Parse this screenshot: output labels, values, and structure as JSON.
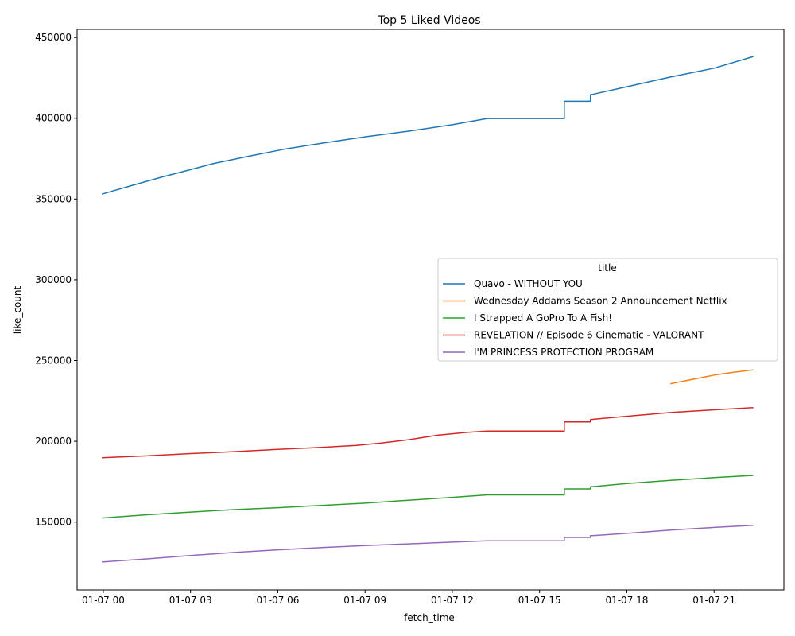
{
  "chart_data": {
    "type": "line",
    "title": "Top 5 Liked Videos",
    "xlabel": "fetch_time",
    "ylabel": "like_count",
    "x_unit": "hours since 01-07 00:00",
    "xlim": [
      -0.9,
      23.4
    ],
    "ylim": [
      108000,
      455000
    ],
    "x_ticks": [
      {
        "value": 0,
        "label": "01-07 00"
      },
      {
        "value": 3,
        "label": "01-07 03"
      },
      {
        "value": 6,
        "label": "01-07 06"
      },
      {
        "value": 9,
        "label": "01-07 09"
      },
      {
        "value": 12,
        "label": "01-07 12"
      },
      {
        "value": 15,
        "label": "01-07 15"
      },
      {
        "value": 18,
        "label": "01-07 18"
      },
      {
        "value": 21,
        "label": "01-07 21"
      }
    ],
    "y_ticks": [
      {
        "value": 150000,
        "label": "150000"
      },
      {
        "value": 200000,
        "label": "200000"
      },
      {
        "value": 250000,
        "label": "250000"
      },
      {
        "value": 300000,
        "label": "300000"
      },
      {
        "value": 350000,
        "label": "350000"
      },
      {
        "value": 400000,
        "label": "400000"
      },
      {
        "value": 450000,
        "label": "450000"
      }
    ],
    "legend": {
      "title": "title",
      "position": "center-right"
    },
    "grid": false,
    "series": [
      {
        "name": "Quavo - WITHOUT YOU",
        "color": "#1f77b4",
        "points": [
          [
            -0.05,
            353000
          ],
          [
            1.0,
            358500
          ],
          [
            2.0,
            363500
          ],
          [
            3.0,
            368200
          ],
          [
            3.8,
            372000
          ],
          [
            5.0,
            376500
          ],
          [
            6.2,
            380800
          ],
          [
            7.5,
            384500
          ],
          [
            9.0,
            388500
          ],
          [
            10.5,
            392000
          ],
          [
            12.0,
            396000
          ],
          [
            13.2,
            399800
          ],
          [
            14.5,
            399800
          ],
          [
            15.85,
            399800
          ],
          [
            15.85,
            410500
          ],
          [
            16.75,
            410500
          ],
          [
            16.75,
            414500
          ],
          [
            18.0,
            419500
          ],
          [
            19.5,
            425500
          ],
          [
            21.0,
            431000
          ],
          [
            22.35,
            438200
          ]
        ]
      },
      {
        "name": "Wednesday Addams  Season 2 Announcement  Netflix",
        "color": "#ff7f0e",
        "points": [
          [
            19.5,
            235700
          ],
          [
            20.3,
            238500
          ],
          [
            21.0,
            241000
          ],
          [
            21.7,
            242800
          ],
          [
            22.35,
            244200
          ]
        ]
      },
      {
        "name": "I Strapped A GoPro To A Fish!",
        "color": "#2ca02c",
        "points": [
          [
            -0.05,
            152500
          ],
          [
            1.5,
            154500
          ],
          [
            3.0,
            156200
          ],
          [
            4.5,
            157700
          ],
          [
            6.0,
            158900
          ],
          [
            7.5,
            160300
          ],
          [
            9.0,
            161700
          ],
          [
            10.5,
            163500
          ],
          [
            12.0,
            165300
          ],
          [
            13.2,
            166800
          ],
          [
            14.5,
            166800
          ],
          [
            15.85,
            166800
          ],
          [
            15.85,
            170500
          ],
          [
            16.75,
            170500
          ],
          [
            16.75,
            171800
          ],
          [
            18.0,
            173800
          ],
          [
            19.5,
            175800
          ],
          [
            21.0,
            177500
          ],
          [
            22.35,
            178900
          ]
        ]
      },
      {
        "name": "REVELATION // Episode 6 Cinematic - VALORANT",
        "color": "#d62728",
        "points": [
          [
            -0.05,
            189800
          ],
          [
            1.5,
            191000
          ],
          [
            3.0,
            192400
          ],
          [
            4.5,
            193600
          ],
          [
            6.0,
            195000
          ],
          [
            7.5,
            196200
          ],
          [
            8.7,
            197500
          ],
          [
            9.5,
            198800
          ],
          [
            10.5,
            201000
          ],
          [
            11.5,
            203800
          ],
          [
            12.5,
            205500
          ],
          [
            13.2,
            206300
          ],
          [
            14.5,
            206300
          ],
          [
            15.85,
            206300
          ],
          [
            15.85,
            212000
          ],
          [
            16.75,
            212000
          ],
          [
            16.75,
            213500
          ],
          [
            18.0,
            215500
          ],
          [
            19.5,
            217800
          ],
          [
            21.0,
            219500
          ],
          [
            22.35,
            220800
          ]
        ]
      },
      {
        "name": "I'M PRINCESS PROTECTION PROGRAM",
        "color": "#9467bd",
        "points": [
          [
            -0.05,
            125300
          ],
          [
            1.5,
            127200
          ],
          [
            3.0,
            129300
          ],
          [
            4.5,
            131200
          ],
          [
            6.0,
            132800
          ],
          [
            7.5,
            134200
          ],
          [
            9.0,
            135400
          ],
          [
            10.5,
            136500
          ],
          [
            12.0,
            137600
          ],
          [
            13.2,
            138400
          ],
          [
            14.5,
            138400
          ],
          [
            15.85,
            138400
          ],
          [
            15.85,
            140500
          ],
          [
            16.75,
            140500
          ],
          [
            16.75,
            141500
          ],
          [
            18.0,
            143000
          ],
          [
            19.5,
            145000
          ],
          [
            21.0,
            146700
          ],
          [
            22.35,
            148000
          ]
        ]
      }
    ]
  }
}
